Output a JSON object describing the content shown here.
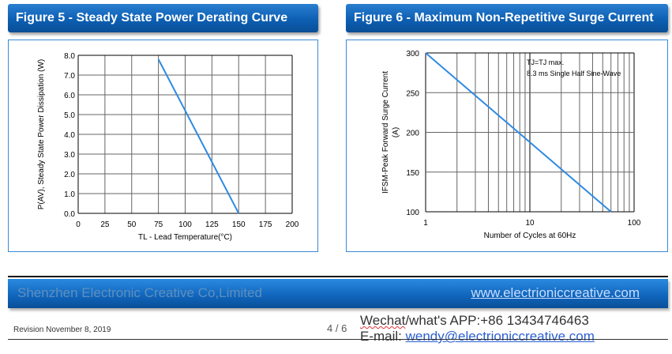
{
  "fig5": {
    "title": "Figure 5 - Steady State Power Derating Curve",
    "ylabel": "P(AV), Steady State Power Dissipation (W)",
    "xlabel": "TL - Lead Temperature(°C)",
    "xticks": [
      "0",
      "25",
      "50",
      "75",
      "100",
      "125",
      "150",
      "175",
      "200"
    ],
    "yticks": [
      "0.0",
      "1.0",
      "2.0",
      "3.0",
      "4.0",
      "5.0",
      "6.0",
      "7.0",
      "8.0"
    ]
  },
  "fig6": {
    "title": "Figure 6 - Maximum Non-Repetitive Surge Current",
    "ylabel_line1": "IFSM-Peak Forward Surge Current",
    "ylabel_line2": "(A)",
    "xlabel": "Number of Cycles at 60Hz",
    "xticks": [
      "1",
      "10",
      "100"
    ],
    "yticks": [
      "100",
      "150",
      "200",
      "250",
      "300"
    ],
    "note_line1": "TJ=TJ max.",
    "note_line2": "8.3 ms Single Half Sine-Wave"
  },
  "chart_data": [
    {
      "type": "line",
      "title": "Figure 5 - Steady State Power Derating Curve",
      "xlabel": "TL - Lead Temperature(°C)",
      "ylabel": "P(AV), Steady State Power Dissipation (W)",
      "xlim": [
        0,
        200
      ],
      "ylim": [
        0,
        8
      ],
      "grid": true,
      "series": [
        {
          "x": [
            75,
            150
          ],
          "y": [
            7.8,
            0
          ]
        }
      ],
      "color": "#2f8ae3"
    },
    {
      "type": "line",
      "title": "Figure 6 - Maximum Non-Repetitive Surge Current",
      "xlabel": "Number of Cycles at 60Hz",
      "ylabel": "IFSM-Peak Forward Surge Current (A)",
      "xscale": "log",
      "xlim": [
        1,
        100
      ],
      "ylim": [
        100,
        300
      ],
      "grid": true,
      "series": [
        {
          "x": [
            1,
            60
          ],
          "y": [
            300,
            100
          ]
        }
      ],
      "annotation": "TJ=TJ max. 8.3 ms Single Half Sine-Wave",
      "color": "#2f8ae3"
    }
  ],
  "footer": {
    "company": "Shenzhen Electronic Creative Co,Limited",
    "url": "www.electrioniccreative.com",
    "revision": "Revision November 8, 2019",
    "page": "4 / 6",
    "wechat_label": "Wechat",
    "wechat_rest": "/what's APP:+86 13434746463",
    "email_label": "E-mail: ",
    "email": "wendy@electrioniccreative.com"
  }
}
